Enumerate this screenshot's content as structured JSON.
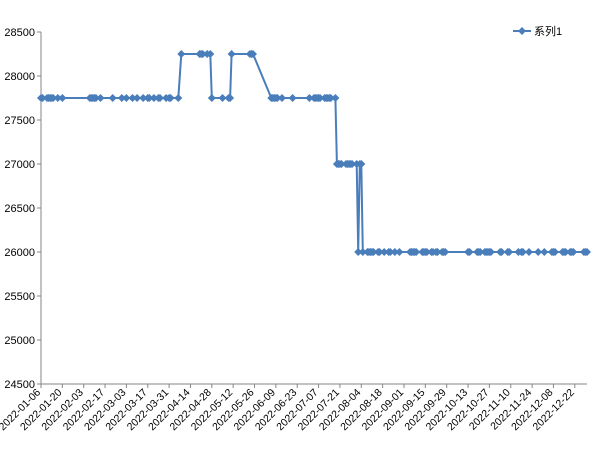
{
  "chart_data": {
    "type": "line",
    "title": "",
    "xlabel": "",
    "ylabel": "",
    "ylim": [
      24500,
      28500
    ],
    "y_ticks": [
      24500,
      25000,
      25500,
      26000,
      26500,
      27000,
      27500,
      28000,
      28500
    ],
    "y_tick_labels": [
      "24500",
      "25000",
      "25500",
      "26000",
      "26500",
      "27000",
      "27500",
      "28000",
      "28500"
    ],
    "x_ticks": [
      "2022-01-06",
      "2022-01-20",
      "2022-02-03",
      "2022-02-17",
      "2022-03-03",
      "2022-03-17",
      "2022-03-31",
      "2022-04-14",
      "2022-04-28",
      "2022-05-12",
      "2022-05-26",
      "2022-06-09",
      "2022-06-23",
      "2022-07-07",
      "2022-07-21",
      "2022-08-04",
      "2022-08-18",
      "2022-09-01",
      "2022-09-15",
      "2022-09-29",
      "2022-10-13",
      "2022-10-27",
      "2022-11-10",
      "2022-11-24",
      "2022-12-08",
      "2022-12-22"
    ],
    "x_range": [
      "2022-01-06",
      "2022-12-30"
    ],
    "grid": false,
    "legend": "top-right",
    "color": "#4a7ebb",
    "series": [
      {
        "name": "系列1",
        "x": [
          "2022-01-06",
          "2022-01-07",
          "2022-01-10",
          "2022-01-11",
          "2022-01-12",
          "2022-01-13",
          "2022-01-14",
          "2022-01-17",
          "2022-01-20",
          "2022-02-07",
          "2022-02-08",
          "2022-02-09",
          "2022-02-10",
          "2022-02-11",
          "2022-02-14",
          "2022-02-22",
          "2022-02-28",
          "2022-03-03",
          "2022-03-07",
          "2022-03-10",
          "2022-03-14",
          "2022-03-17",
          "2022-03-18",
          "2022-03-21",
          "2022-03-24",
          "2022-03-25",
          "2022-03-29",
          "2022-03-31",
          "2022-04-01",
          "2022-04-06",
          "2022-04-08",
          "2022-04-20",
          "2022-04-21",
          "2022-04-22",
          "2022-04-25",
          "2022-04-27",
          "2022-04-28",
          "2022-05-05",
          "2022-05-09",
          "2022-05-10",
          "2022-05-11",
          "2022-05-23",
          "2022-05-24",
          "2022-05-25",
          "2022-06-06",
          "2022-06-07",
          "2022-06-08",
          "2022-06-09",
          "2022-06-10",
          "2022-06-13",
          "2022-06-20",
          "2022-07-01",
          "2022-07-04",
          "2022-07-05",
          "2022-07-06",
          "2022-07-07",
          "2022-07-08",
          "2022-07-11",
          "2022-07-12",
          "2022-07-13",
          "2022-07-14",
          "2022-07-15",
          "2022-07-18",
          "2022-07-19",
          "2022-07-20",
          "2022-07-21",
          "2022-07-22",
          "2022-07-25",
          "2022-07-26",
          "2022-07-27",
          "2022-07-28",
          "2022-07-29",
          "2022-08-01",
          "2022-08-02",
          "2022-08-03",
          "2022-08-04",
          "2022-08-05",
          "2022-08-08",
          "2022-08-09",
          "2022-08-10",
          "2022-08-11",
          "2022-08-12",
          "2022-08-15",
          "2022-08-16",
          "2022-08-19",
          "2022-08-22",
          "2022-08-23",
          "2022-08-26",
          "2022-08-29",
          "2022-09-05",
          "2022-09-06",
          "2022-09-07",
          "2022-09-08",
          "2022-09-09",
          "2022-09-13",
          "2022-09-14",
          "2022-09-15",
          "2022-09-16",
          "2022-09-19",
          "2022-09-20",
          "2022-09-22",
          "2022-09-23",
          "2022-09-26",
          "2022-09-27",
          "2022-09-28",
          "2022-10-13",
          "2022-10-14",
          "2022-10-19",
          "2022-10-20",
          "2022-10-21",
          "2022-10-24",
          "2022-10-25",
          "2022-10-26",
          "2022-10-27",
          "2022-10-28",
          "2022-11-03",
          "2022-11-04",
          "2022-11-08",
          "2022-11-09",
          "2022-11-15",
          "2022-11-17",
          "2022-11-18",
          "2022-11-22",
          "2022-11-28",
          "2022-12-02",
          "2022-12-07",
          "2022-12-08",
          "2022-12-09",
          "2022-12-14",
          "2022-12-15",
          "2022-12-16",
          "2022-12-19",
          "2022-12-20",
          "2022-12-21",
          "2022-12-28",
          "2022-12-29",
          "2022-12-30"
        ],
        "values": [
          27750,
          27750,
          27750,
          27750,
          27750,
          27750,
          27750,
          27750,
          27750,
          27750,
          27750,
          27750,
          27750,
          27750,
          27750,
          27750,
          27750,
          27750,
          27750,
          27750,
          27750,
          27750,
          27750,
          27750,
          27750,
          27750,
          27750,
          27750,
          27750,
          27750,
          28250,
          28250,
          28250,
          28250,
          28250,
          28250,
          27750,
          27750,
          27750,
          27750,
          28250,
          28250,
          28250,
          28250,
          27750,
          27750,
          27750,
          27750,
          27750,
          27750,
          27750,
          27750,
          27750,
          27750,
          27750,
          27750,
          27750,
          27750,
          27750,
          27750,
          27750,
          27750,
          27750,
          27000,
          27000,
          27000,
          27000,
          27000,
          27000,
          27000,
          27000,
          27000,
          27000,
          26000,
          27000,
          27000,
          26000,
          26000,
          26000,
          26000,
          26000,
          26000,
          26000,
          26000,
          26000,
          26000,
          26000,
          26000,
          26000,
          26000,
          26000,
          26000,
          26000,
          26000,
          26000,
          26000,
          26000,
          26000,
          26000,
          26000,
          26000,
          26000,
          26000,
          26000,
          26000,
          26000,
          26000,
          26000,
          26000,
          26000,
          26000,
          26000,
          26000,
          26000,
          26000,
          26000,
          26000,
          26000,
          26000,
          26000,
          26000,
          26000,
          26000,
          26000,
          26000,
          26000,
          26000,
          26000,
          26000,
          26000,
          26000,
          26000,
          26000,
          26000,
          26000,
          26000,
          26000
        ]
      }
    ]
  }
}
